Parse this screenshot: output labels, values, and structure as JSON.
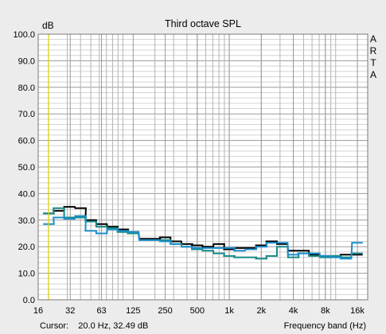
{
  "chart_data": {
    "type": "line",
    "title": "Third octave SPL",
    "ylabel": "dB",
    "xlabel": "Frequency band (Hz)",
    "brand": "ARTA",
    "cursor": "Cursor:    20.0 Hz, 32.49 dB",
    "cursor_x": 20,
    "x_scale": "log",
    "xlim": [
      16,
      20000
    ],
    "ylim": [
      0,
      100
    ],
    "grid": true,
    "x_ticks": [
      16,
      32,
      63,
      125,
      250,
      500,
      1000,
      2000,
      4000,
      8000,
      16000
    ],
    "x_tick_labels": [
      "16",
      "32",
      "63",
      "125",
      "250",
      "500",
      "1k",
      "2k",
      "4k",
      "8k",
      "16k"
    ],
    "y_ticks": [
      0,
      10,
      20,
      30,
      40,
      50,
      60,
      70,
      80,
      90,
      100
    ],
    "y_tick_labels": [
      "0.0",
      "10.0",
      "20.0",
      "30.0",
      "40.0",
      "50.0",
      "60.0",
      "70.0",
      "80.0",
      "90.0",
      "100.0"
    ],
    "bands": [
      20,
      25,
      31.5,
      40,
      50,
      63,
      80,
      100,
      125,
      160,
      200,
      250,
      315,
      400,
      500,
      630,
      800,
      1000,
      1250,
      1600,
      2000,
      2500,
      3150,
      4000,
      5000,
      6300,
      8000,
      10000,
      12500,
      16000
    ],
    "series": [
      {
        "color": "#000000",
        "values": [
          32.5,
          33.5,
          35.0,
          34.5,
          30.0,
          28.5,
          27.5,
          26.5,
          25.5,
          23.0,
          23.0,
          23.5,
          22.0,
          21.0,
          20.5,
          20.0,
          21.0,
          19.0,
          19.5,
          19.5,
          20.5,
          22.0,
          21.0,
          18.5,
          18.5,
          17.0,
          16.5,
          16.5,
          17.0,
          17.0
        ]
      },
      {
        "color": "#178a86",
        "values": [
          32.5,
          34.5,
          31.0,
          31.0,
          29.5,
          27.5,
          27.0,
          25.5,
          25.0,
          22.5,
          22.5,
          22.5,
          21.0,
          20.0,
          19.0,
          18.5,
          17.5,
          16.5,
          16.0,
          16.0,
          15.5,
          16.5,
          20.0,
          16.0,
          17.5,
          16.5,
          16.0,
          16.5,
          16.0,
          17.5
        ]
      },
      {
        "color": "#1b8ecb",
        "values": [
          28.5,
          31.0,
          30.5,
          31.5,
          26.0,
          25.0,
          26.5,
          26.0,
          25.5,
          22.5,
          22.5,
          22.0,
          21.0,
          20.0,
          19.5,
          19.5,
          19.5,
          19.5,
          18.5,
          19.0,
          20.0,
          21.5,
          21.5,
          17.0,
          17.5,
          17.5,
          16.5,
          16.0,
          15.5,
          21.5
        ]
      }
    ]
  }
}
